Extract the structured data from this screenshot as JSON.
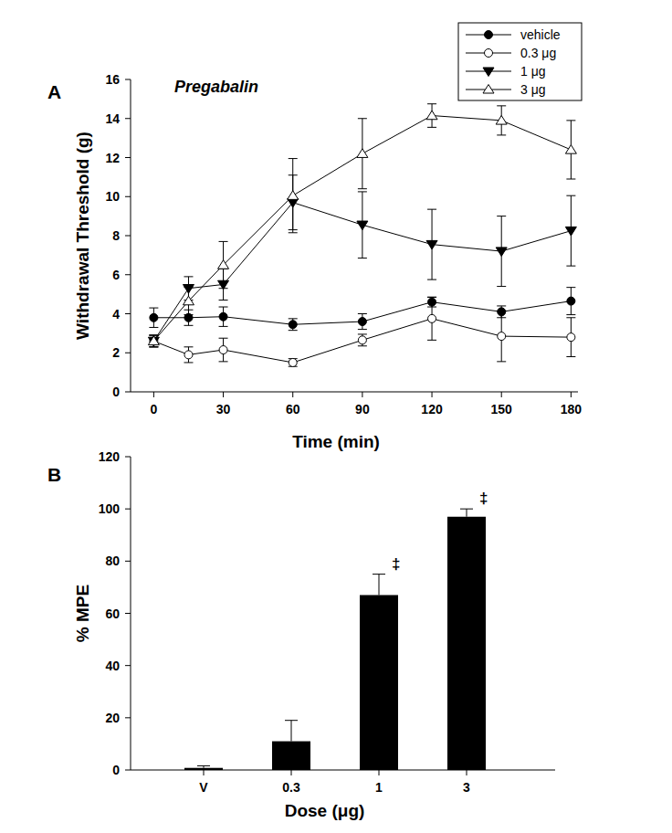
{
  "chart_data": [
    {
      "type": "line",
      "panel_label": "A",
      "title": "Pregabalin",
      "x_label": "Time (min)",
      "y_label": "Withdrawal Threshold (g)",
      "x": [
        0,
        15,
        30,
        60,
        90,
        120,
        150,
        180
      ],
      "xlim": [
        -10,
        183
      ],
      "xticks": [
        0,
        30,
        60,
        90,
        120,
        150,
        180
      ],
      "ylim": [
        0,
        16
      ],
      "yticks": [
        0,
        2,
        4,
        6,
        8,
        10,
        12,
        14,
        16
      ],
      "grid": false,
      "legend": "upper right",
      "series": [
        {
          "name": "vehicle",
          "color": "#000000",
          "marker": "circle",
          "values": [
            3.8,
            3.8,
            3.85,
            3.45,
            3.6,
            4.6,
            4.1,
            4.65
          ],
          "errors": [
            0.5,
            0.4,
            0.5,
            0.3,
            0.4,
            0.25,
            0.3,
            0.7
          ]
        },
        {
          "name": "0.3 μg",
          "color": "#000000",
          "marker": "circle-open",
          "values": [
            2.6,
            1.9,
            2.15,
            1.5,
            2.65,
            3.75,
            2.85,
            2.8
          ],
          "errors": [
            0.3,
            0.4,
            0.6,
            0.2,
            0.3,
            1.1,
            1.3,
            1.0
          ]
        },
        {
          "name": "1 μg",
          "color": "#000000",
          "marker": "triangle-down",
          "values": [
            2.6,
            5.3,
            5.5,
            9.7,
            8.55,
            7.55,
            7.2,
            8.25
          ],
          "errors": [
            0.3,
            0.6,
            0.8,
            1.4,
            1.7,
            1.8,
            1.8,
            1.8
          ]
        },
        {
          "name": "3 μg",
          "color": "#000000",
          "marker": "triangle-up-open",
          "values": [
            2.6,
            4.65,
            6.5,
            10.05,
            12.2,
            14.15,
            13.9,
            12.4
          ],
          "errors": [
            0.3,
            0.7,
            1.2,
            1.9,
            1.8,
            0.6,
            0.75,
            1.5
          ]
        }
      ]
    },
    {
      "type": "bar",
      "panel_label": "B",
      "x_label": "Dose (μg)",
      "y_label": "% MPE",
      "categories": [
        "V",
        "0.3",
        "1",
        "3"
      ],
      "values": [
        0.8,
        11,
        67,
        97
      ],
      "errors": [
        0.8,
        8,
        8,
        3
      ],
      "annotations": [
        null,
        null,
        "‡",
        "‡"
      ],
      "color": "#000000",
      "ylim": [
        0,
        120
      ],
      "yticks": [
        0,
        20,
        40,
        60,
        80,
        100,
        120
      ],
      "grid": false
    }
  ]
}
